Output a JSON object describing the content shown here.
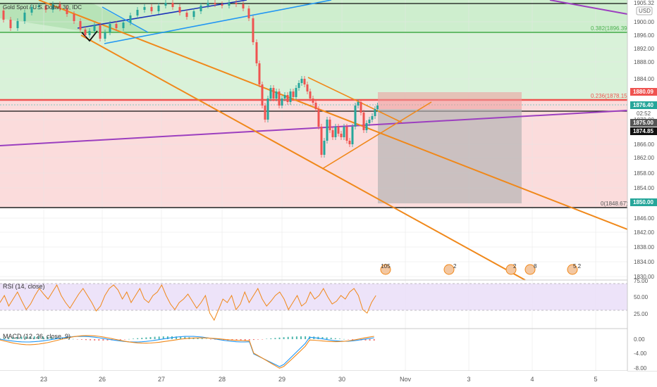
{
  "symbol": {
    "title": "Gold Spot / U.S. Dollar, 30, IDC",
    "currency": "USD"
  },
  "colors": {
    "up": "#26a69a",
    "down": "#ef5350",
    "orange": "#f0881a",
    "purple": "#9c3fbf",
    "blue": "#2196f3",
    "navy": "#1a2fb8",
    "green_zone": "#c8ecc8",
    "red_zone": "#fbd6d6",
    "rsi_line": "#f0881a",
    "macd_line": "#2196f3",
    "signal_line": "#f0881a"
  },
  "price_axis": {
    "ticks": [
      "1900.00",
      "1896.00",
      "1892.00",
      "1888.00",
      "1884.00",
      "1880.00",
      "1876.00",
      "1872.00",
      "1866.00",
      "1862.00",
      "1858.00",
      "1854.00",
      "1850.00",
      "1846.00",
      "1842.00",
      "1838.00",
      "1834.00",
      "1830.00"
    ],
    "top_label": "1905.32"
  },
  "price_tags": [
    {
      "text": "1880.09",
      "bg": "#ef5350"
    },
    {
      "text": "1876.40",
      "bg": "#26a69a"
    },
    {
      "text": "02:52",
      "bg": "#ffffff"
    },
    {
      "text": "1875.00",
      "bg": "#555555"
    },
    {
      "text": "1874.85",
      "bg": "#111111"
    },
    {
      "text": "1850.00",
      "bg": "#26a69a"
    }
  ],
  "fib_levels": [
    {
      "label": "0.382(1896.39)",
      "color": "#4caf50"
    },
    {
      "label": "0.236(1878.15)",
      "color": "#ef5350"
    },
    {
      "label": "0(1848.67)",
      "color": "#555555"
    }
  ],
  "x_axis": {
    "ticks": [
      "23",
      "26",
      "27",
      "28",
      "29",
      "30",
      "Nov",
      "3",
      "4",
      "5"
    ]
  },
  "events": [
    {
      "label": "105"
    },
    {
      "label": "2"
    },
    {
      "label": "2"
    },
    {
      "label": "8"
    },
    {
      "label": "5 2"
    }
  ],
  "rsi": {
    "title": "RSI (14, close)",
    "ticks": [
      "75.00",
      "50.00",
      "25.00"
    ]
  },
  "macd": {
    "title": "MACD (12, 26, close, 9)",
    "ticks": [
      "0.00",
      "-4.00",
      "-8.00"
    ]
  }
}
